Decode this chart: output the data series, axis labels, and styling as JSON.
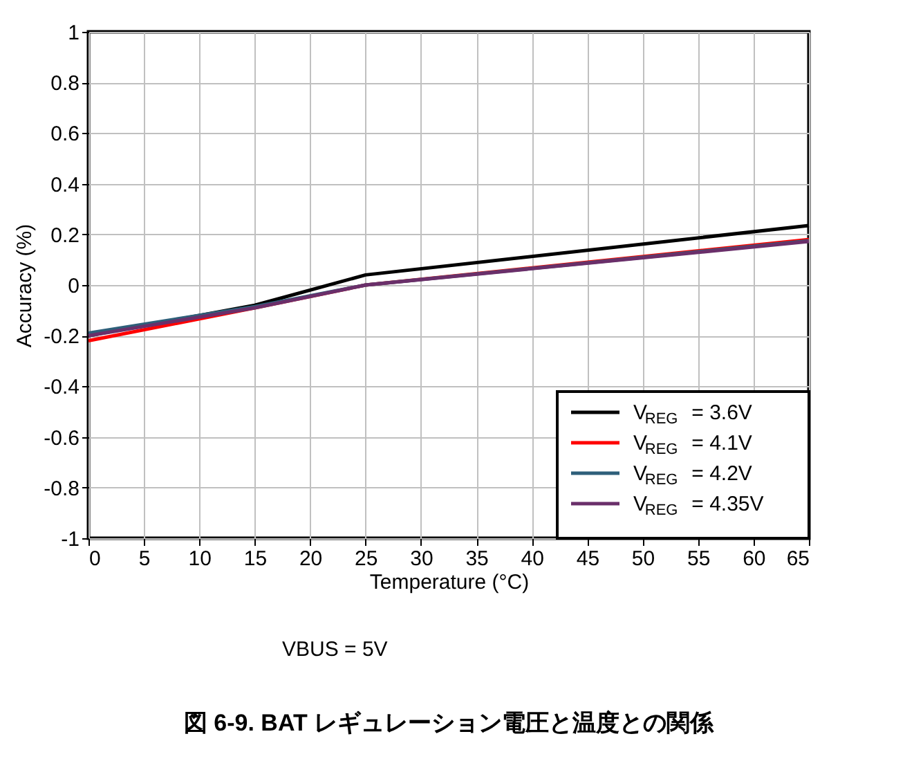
{
  "chart_data": {
    "type": "line",
    "title": "図 6-9. BAT レギュレーション電圧と温度との関係",
    "xlabel": "Temperature (°C)",
    "ylabel": "Accuracy (%)",
    "annotations": [
      "VBUS = 5V"
    ],
    "xlim": [
      0,
      65
    ],
    "xticks": [
      0,
      5,
      10,
      15,
      20,
      25,
      30,
      35,
      40,
      45,
      50,
      55,
      60,
      65
    ],
    "ylim": [
      -1,
      1
    ],
    "yticks": [
      -1,
      -0.8,
      -0.6,
      -0.4,
      -0.2,
      0,
      0.2,
      0.4,
      0.6,
      0.8,
      1
    ],
    "grid": true,
    "legend": "bottom right",
    "marker": "none",
    "line_style": "solid",
    "series": [
      {
        "name": "V$_{REG}$ = 3.6V",
        "color": "#000000",
        "x": [
          0,
          15,
          25,
          65
        ],
        "values": [
          -0.2,
          -0.08,
          0.04,
          0.235
        ]
      },
      {
        "name": "V$_{REG}$ = 4.1V",
        "color": "#ff0000",
        "x": [
          0,
          15,
          25,
          65
        ],
        "values": [
          -0.22,
          -0.09,
          0.0,
          0.18
        ]
      },
      {
        "name": "V$_{REG}$ = 4.2V",
        "color": "#2e5f7a",
        "x": [
          0,
          15,
          25,
          65
        ],
        "values": [
          -0.19,
          -0.085,
          0.0,
          0.175
        ]
      },
      {
        "name": "V$_{REG}$ = 4.35V",
        "color": "#6a2f6a",
        "x": [
          0,
          15,
          25,
          65
        ],
        "values": [
          -0.2,
          -0.09,
          0.0,
          0.172
        ]
      }
    ]
  }
}
